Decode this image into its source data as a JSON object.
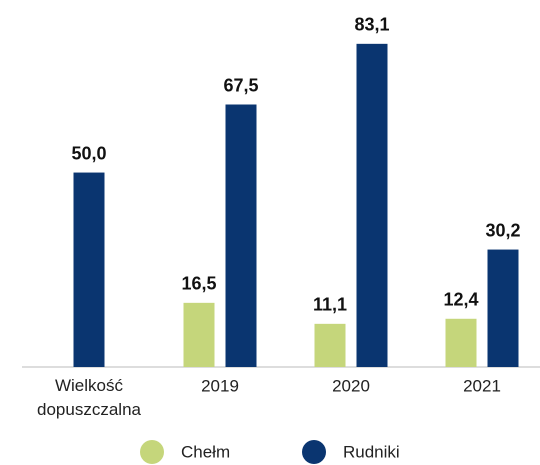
{
  "chart_data": {
    "type": "bar",
    "categories": [
      "Wielkość dopuszczalna",
      "2019",
      "2020",
      "2021"
    ],
    "series": [
      {
        "name": "Chełm",
        "color": "#c5d67b",
        "values": [
          null,
          16.5,
          11.1,
          12.4
        ],
        "value_labels": [
          null,
          "16,5",
          "11,1",
          "12,4"
        ]
      },
      {
        "name": "Rudniki",
        "color": "#0a3570",
        "values": [
          50.0,
          67.5,
          83.1,
          30.2
        ],
        "value_labels": [
          "50,0",
          "67,5",
          "83,1",
          "30,2"
        ]
      }
    ],
    "ylim": [
      0,
      90
    ],
    "legend": "bottom"
  }
}
